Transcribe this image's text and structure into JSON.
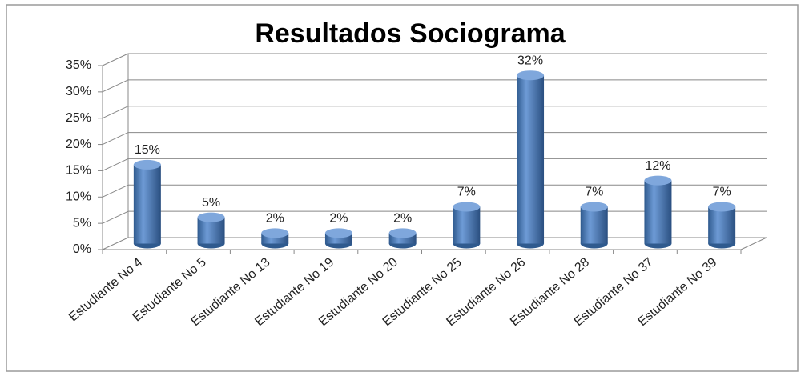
{
  "chart_data": {
    "type": "bar3d",
    "title": "Resultados Sociograma",
    "categories": [
      "Estudiante No 4",
      "Estudiante No 5",
      "Estudiante No 13",
      "Estudiante No 19",
      "Estudiante No 20",
      "Estudiante No 25",
      "Estudiante No 26",
      "Estudiante No 28",
      "Estudiante No 37",
      "Estudiante No 39"
    ],
    "values": [
      15,
      5,
      2,
      2,
      2,
      7,
      32,
      7,
      12,
      7
    ],
    "value_labels": [
      "15%",
      "5%",
      "2%",
      "2%",
      "2%",
      "7%",
      "32%",
      "7%",
      "12%",
      "7%"
    ],
    "color": "#4f81bd",
    "ylim": [
      0,
      35
    ],
    "yticks": [
      {
        "value": 0,
        "label": "0%"
      },
      {
        "value": 5,
        "label": "5%"
      },
      {
        "value": 10,
        "label": "10%"
      },
      {
        "value": 15,
        "label": "15%"
      },
      {
        "value": 20,
        "label": "20%"
      },
      {
        "value": 25,
        "label": "25%"
      },
      {
        "value": 30,
        "label": "30%"
      },
      {
        "value": 35,
        "label": "35%"
      }
    ],
    "grid": true
  }
}
